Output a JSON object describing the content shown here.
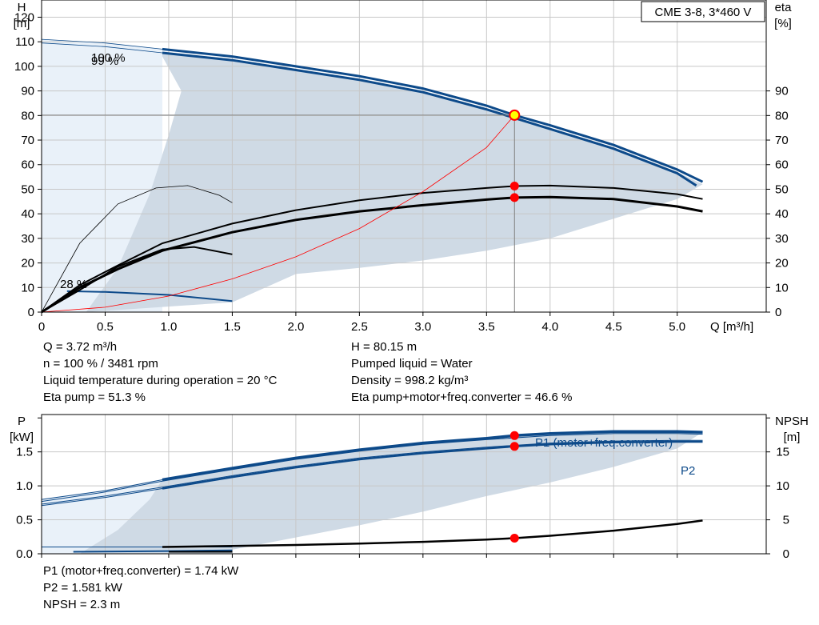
{
  "title_box": "CME 3-8, 3*460 V",
  "info_left": [
    "Q = 3.72 m³/h",
    "n = 100 % / 3481 rpm",
    "Liquid temperature during operation = 20 °C",
    "Eta pump = 51.3 %"
  ],
  "info_right": [
    "H = 80.15 m",
    "Pumped liquid = Water",
    "Density = 998.2 kg/m³",
    "Eta pump+motor+freq.converter = 46.6 %"
  ],
  "info_bottom": [
    "P1 (motor+freq.converter) = 1.74 kW",
    "P2 = 1.581 kW",
    "NPSH = 2.3 m"
  ],
  "colors": {
    "blue": "#0d4a8a",
    "black": "#000000",
    "red": "#ff0000",
    "fill_dark": "#cfdae5",
    "fill_light": "#e9f1f9",
    "grid": "#c8c8c8",
    "duty_point": "#ffff00"
  },
  "chart_data": [
    {
      "type": "line",
      "id": "top",
      "ylabel_left": [
        "H",
        "[m]"
      ],
      "ylabel_right": [
        "eta",
        "[%]"
      ],
      "xlabel": "Q [m³/h]",
      "xlim": [
        0,
        5.7
      ],
      "ylim": [
        0,
        127
      ],
      "x_ticks": [
        0,
        0.5,
        1.0,
        1.5,
        2.0,
        2.5,
        3.0,
        3.5,
        4.0,
        4.5,
        5.0
      ],
      "x_tick_labels": [
        "0",
        "0.5",
        "1.0",
        "1.5",
        "2.0",
        "2.5",
        "3.0",
        "3.5",
        "4.0",
        "4.5",
        "5.0"
      ],
      "y_ticks_left": [
        0,
        10,
        20,
        30,
        40,
        50,
        60,
        70,
        80,
        90,
        100,
        110,
        120
      ],
      "y_tick_labels_left": [
        "0",
        "10",
        "20",
        "30",
        "40",
        "50",
        "60",
        "70",
        "80",
        "90",
        "100",
        "110",
        "120"
      ],
      "y_ticks_right": [
        0,
        10,
        20,
        30,
        40,
        50,
        60,
        70,
        80,
        90
      ],
      "y_tick_labels_right": [
        "0",
        "10",
        "20",
        "30",
        "40",
        "50",
        "60",
        "70",
        "80",
        "90"
      ],
      "annotations": [
        "100 %",
        "99 %",
        "28 %"
      ],
      "regions": [
        {
          "name": "allowed-range",
          "x": [
            0.95,
            5.2
          ],
          "comment": "shaded operating area"
        }
      ],
      "series": [
        {
          "name": "H 100 %",
          "x": [
            0.95,
            1.5,
            2.0,
            2.5,
            3.0,
            3.5,
            3.72,
            4.0,
            4.5,
            5.0,
            5.2
          ],
          "y": [
            107,
            104,
            100,
            96,
            91,
            84,
            80.15,
            76,
            68,
            58,
            53
          ]
        },
        {
          "name": "H 99 %",
          "x": [
            0.95,
            1.5,
            2.0,
            2.5,
            3.0,
            3.5,
            3.72,
            4.0,
            4.5,
            5.0,
            5.15
          ],
          "y": [
            105.5,
            102.5,
            98.5,
            94.5,
            89.5,
            82.5,
            79,
            74.5,
            66.5,
            56.5,
            51.5
          ]
        },
        {
          "name": "H min",
          "x": [
            0,
            0.5,
            0.95
          ],
          "y": [
            111,
            109.5,
            107
          ]
        },
        {
          "name": "H min 2",
          "x": [
            0,
            0.5,
            0.95
          ],
          "y": [
            109.5,
            108,
            105.5
          ]
        },
        {
          "name": "H 28 %",
          "x": [
            0.2,
            0.5,
            1.0,
            1.5
          ],
          "y": [
            8.5,
            8.2,
            7,
            4.5
          ]
        },
        {
          "name": "eta pump",
          "x": [
            0,
            0.3,
            0.6,
            0.95,
            1.5,
            2.0,
            2.5,
            3.0,
            3.5,
            3.72,
            4.0,
            4.5,
            5.0,
            5.2
          ],
          "y": [
            0,
            11,
            19,
            28,
            36,
            41.5,
            45.5,
            48.5,
            50.5,
            51.3,
            51.5,
            50.5,
            48,
            46
          ]
        },
        {
          "name": "eta total",
          "x": [
            0,
            0.3,
            0.6,
            0.95,
            1.5,
            2.0,
            2.5,
            3.0,
            3.5,
            3.72,
            4.0,
            4.5,
            5.0,
            5.2
          ],
          "y": [
            0,
            10,
            17.5,
            25,
            32.5,
            37.5,
            41,
            43.5,
            45.8,
            46.6,
            46.8,
            46,
            43,
            41
          ]
        },
        {
          "name": "eta low speed",
          "x": [
            0,
            0.3,
            0.6,
            0.95,
            1.2,
            1.5
          ],
          "y": [
            0,
            9,
            18.5,
            25.5,
            26.5,
            23.5
          ]
        },
        {
          "name": "eta thin",
          "x": [
            0,
            0.3,
            0.6,
            0.9,
            1.15,
            1.4,
            1.5
          ],
          "y": [
            0,
            28,
            44,
            50.5,
            51.5,
            47.5,
            44.5
          ]
        },
        {
          "name": "system curve",
          "x": [
            0,
            0.5,
            1.0,
            1.5,
            2.0,
            2.5,
            3.0,
            3.5,
            3.72
          ],
          "y": [
            0,
            2,
            6.5,
            13.5,
            22.5,
            34,
            49,
            67,
            80.15
          ]
        }
      ],
      "markers": [
        {
          "name": "duty-point",
          "x": 3.72,
          "y": 80.15
        },
        {
          "name": "eta-pump-point",
          "x": 3.72,
          "y": 51.3
        },
        {
          "name": "eta-total-point",
          "x": 3.72,
          "y": 46.6
        }
      ]
    },
    {
      "type": "line",
      "id": "bottom",
      "ylabel_left": [
        "P",
        "[kW]"
      ],
      "ylabel_right": [
        "NPSH",
        "[m]"
      ],
      "xlim": [
        0,
        5.7
      ],
      "ylim": [
        0,
        2.05
      ],
      "y2lim": [
        0,
        20.5
      ],
      "x_ticks": [
        0,
        0.5,
        1.0,
        1.5,
        2.0,
        2.5,
        3.0,
        3.5,
        4.0,
        4.5,
        5.0
      ],
      "y_ticks_left": [
        0,
        0.5,
        1.0,
        1.5
      ],
      "y_tick_labels_left": [
        "0.0",
        "0.5",
        "1.0",
        "1.5"
      ],
      "y_ticks_right": [
        0,
        5,
        10,
        15
      ],
      "y_tick_labels_right": [
        "0",
        "5",
        "10",
        "15"
      ],
      "series": [
        {
          "name": "P1 (motor+freq.converter)",
          "x": [
            0.95,
            1.5,
            2.0,
            2.5,
            3.0,
            3.5,
            3.72,
            4.0,
            4.5,
            5.0,
            5.2
          ],
          "y": [
            1.09,
            1.26,
            1.41,
            1.53,
            1.63,
            1.7,
            1.74,
            1.77,
            1.8,
            1.8,
            1.79
          ]
        },
        {
          "name": "P2",
          "x": [
            0.95,
            1.5,
            2.0,
            2.5,
            3.0,
            3.5,
            3.72,
            4.0,
            4.5,
            5.0,
            5.2
          ],
          "y": [
            0.96,
            1.13,
            1.27,
            1.39,
            1.48,
            1.55,
            1.581,
            1.61,
            1.64,
            1.65,
            1.65
          ]
        },
        {
          "name": "P1 b",
          "x": [
            0.95,
            1.5,
            2.0,
            2.5,
            3.0,
            3.5,
            4.0,
            4.5,
            5.0,
            5.2
          ],
          "y": [
            1.07,
            1.24,
            1.39,
            1.51,
            1.61,
            1.68,
            1.74,
            1.77,
            1.77,
            1.76
          ]
        },
        {
          "name": "P2 b",
          "x": [
            0.95,
            1.5,
            2.0,
            2.5,
            3.0,
            3.5,
            4.0,
            4.5,
            5.0,
            5.2
          ],
          "y": [
            0.98,
            1.15,
            1.29,
            1.41,
            1.5,
            1.57,
            1.63,
            1.66,
            1.67,
            1.67
          ]
        },
        {
          "name": "P1 min",
          "x": [
            0,
            0.5,
            0.95
          ],
          "y": [
            0.8,
            0.93,
            1.09
          ]
        },
        {
          "name": "P2 min",
          "x": [
            0,
            0.5,
            0.95
          ],
          "y": [
            0.71,
            0.83,
            0.96
          ]
        },
        {
          "name": "P1 min b",
          "x": [
            0,
            0.5,
            0.95
          ],
          "y": [
            0.77,
            0.91,
            1.07
          ]
        },
        {
          "name": "P2 min b",
          "x": [
            0,
            0.5,
            0.95
          ],
          "y": [
            0.73,
            0.85,
            0.98
          ]
        },
        {
          "name": "P 28 % a",
          "x": [
            0.25,
            1.0,
            1.5
          ],
          "y": [
            0.03,
            0.04,
            0.05
          ]
        },
        {
          "name": "P 28 % b",
          "x": [
            0,
            1.0,
            1.5
          ],
          "y": [
            0.1,
            0.1,
            0.1
          ]
        },
        {
          "name": "NPSH",
          "axis": "right",
          "x": [
            0.95,
            1.5,
            2.0,
            2.5,
            3.0,
            3.5,
            3.72,
            4.0,
            4.5,
            5.0,
            5.2
          ],
          "y": [
            1.0,
            1.15,
            1.3,
            1.5,
            1.75,
            2.1,
            2.3,
            2.65,
            3.4,
            4.4,
            4.9
          ]
        }
      ],
      "markers": [
        {
          "name": "p1-point",
          "x": 3.72,
          "y": 1.74
        },
        {
          "name": "p2-point",
          "x": 3.72,
          "y": 1.581
        },
        {
          "name": "npsh-point",
          "x": 3.72,
          "y": 2.3,
          "axis": "right"
        }
      ]
    }
  ]
}
